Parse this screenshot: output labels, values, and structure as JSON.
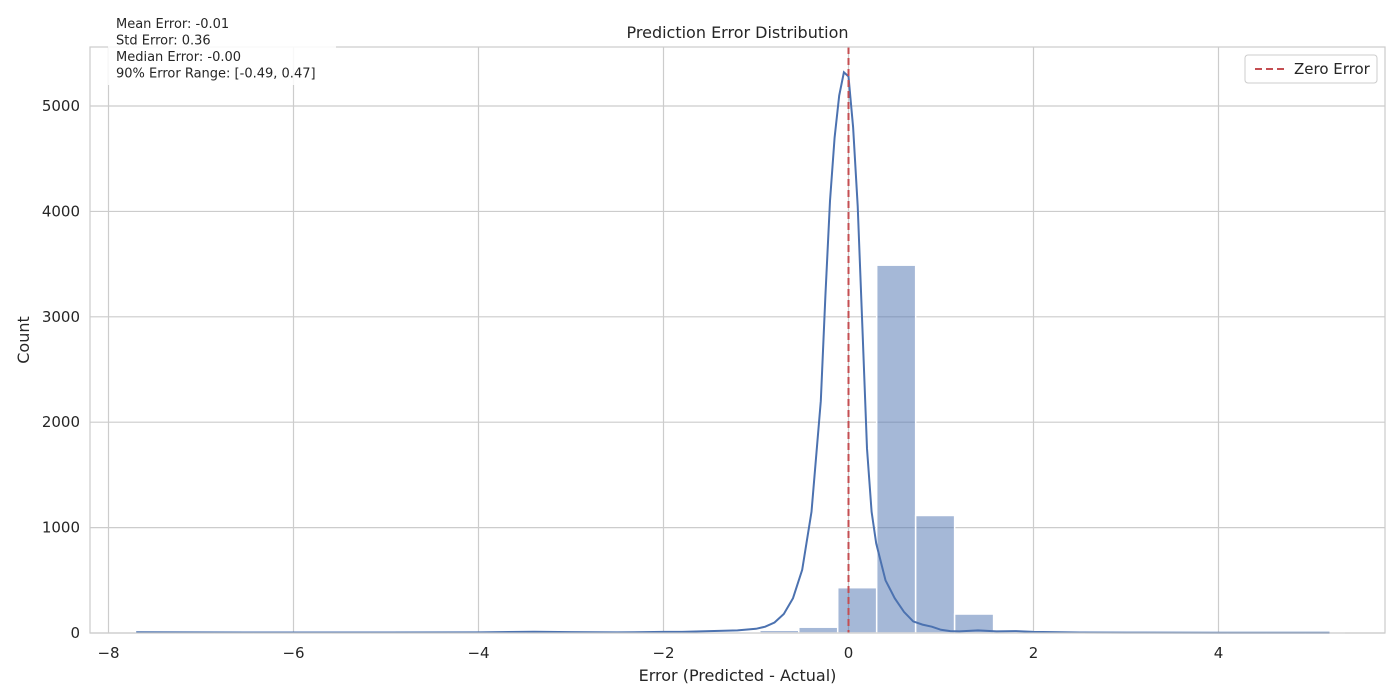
{
  "chart_data": {
    "type": "bar",
    "title": "Prediction Error Distribution",
    "xlabel": "Error (Predicted - Actual)",
    "ylabel": "Count",
    "xlim": [
      -8.2,
      5.8
    ],
    "ylim": [
      0,
      5560
    ],
    "x_ticks": [
      -8,
      -6,
      -4,
      -2,
      0,
      2,
      4
    ],
    "x_tick_labels": [
      "−8",
      "−6",
      "−4",
      "−2",
      "0",
      "2",
      "4"
    ],
    "y_ticks": [
      0,
      1000,
      2000,
      3000,
      4000,
      5000
    ],
    "y_tick_labels": [
      "0",
      "1000",
      "2000",
      "3000",
      "4000",
      "5000"
    ],
    "grid": true,
    "bins": {
      "start": -7.7,
      "width": 0.4213,
      "counts": [
        2,
        1,
        1,
        1,
        1,
        1,
        5,
        2,
        2,
        10,
        3,
        4,
        3,
        8,
        9,
        14,
        26,
        55,
        430,
        3490,
        1115,
        180,
        15,
        12,
        12,
        7,
        3,
        2,
        1,
        1,
        1
      ]
    },
    "kde": {
      "x": [
        -7.7,
        -6.5,
        -5.0,
        -4.0,
        -3.4,
        -3.0,
        -2.5,
        -2.0,
        -1.8,
        -1.6,
        -1.4,
        -1.2,
        -1.0,
        -0.9,
        -0.8,
        -0.7,
        -0.6,
        -0.5,
        -0.4,
        -0.3,
        -0.25,
        -0.2,
        -0.15,
        -0.1,
        -0.05,
        0.0,
        0.05,
        0.1,
        0.15,
        0.2,
        0.25,
        0.3,
        0.4,
        0.5,
        0.6,
        0.7,
        0.8,
        0.9,
        1.0,
        1.1,
        1.2,
        1.4,
        1.6,
        1.8,
        2.0,
        2.5,
        3.0,
        4.0,
        5.2
      ],
      "y": [
        8,
        5,
        5,
        6,
        12,
        9,
        6,
        10,
        10,
        15,
        20,
        25,
        40,
        60,
        100,
        180,
        330,
        600,
        1150,
        2200,
        3200,
        4100,
        4700,
        5100,
        5320,
        5280,
        4800,
        4050,
        2900,
        1750,
        1150,
        850,
        500,
        330,
        200,
        110,
        80,
        60,
        30,
        18,
        15,
        25,
        15,
        18,
        10,
        5,
        4,
        3,
        2
      ]
    },
    "reference_line": {
      "x": 0,
      "label": "Zero Error",
      "color": "#c44e52",
      "style": "dashed"
    },
    "bar_color": "#4c72b0",
    "bar_alpha": 0.5,
    "kde_color": "#4c72b0",
    "legend_position": "top-right",
    "stats": [
      "Mean Error: -0.01",
      "Std Error: 0.36",
      "Median Error: -0.00",
      "90% Error Range: [-0.49, 0.47]"
    ]
  }
}
